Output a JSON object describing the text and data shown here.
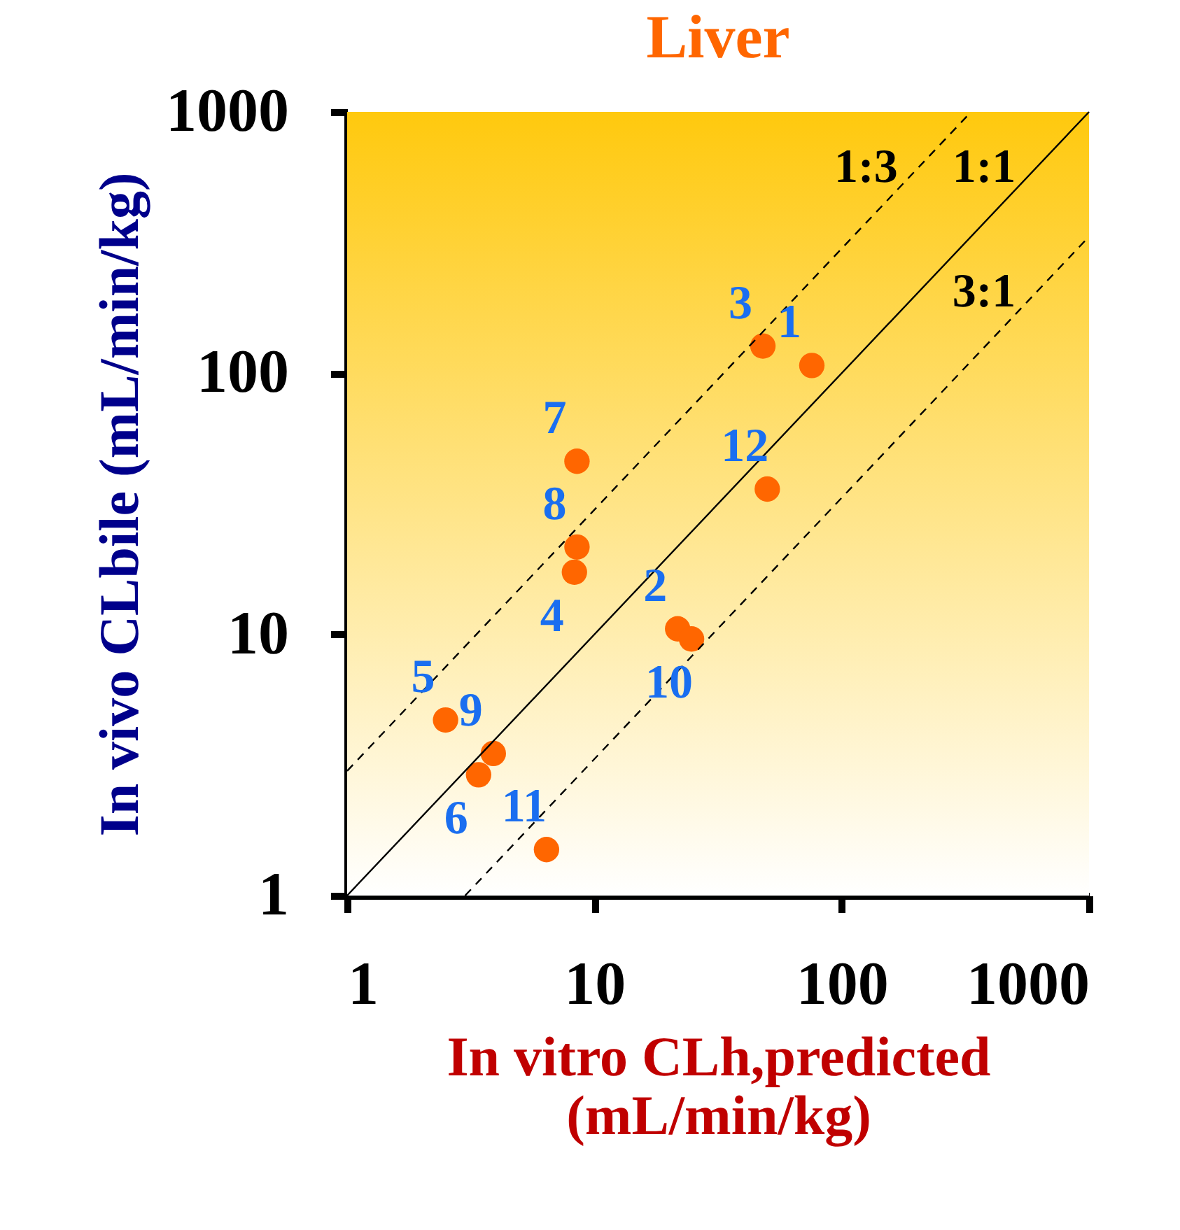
{
  "chart_data": {
    "type": "scatter",
    "title": "Liver",
    "xlabel": "In vitro CLh,predicted (mL/min/kg)",
    "ylabel": "In vivo CLbile (mL/min/kg)",
    "log": "xy",
    "xlim": [
      1,
      1000
    ],
    "ylim": [
      1,
      1000
    ],
    "xticks": [
      1,
      10,
      100,
      1000
    ],
    "yticks": [
      1,
      10,
      100,
      1000
    ],
    "grid": false,
    "series": [
      {
        "color": "#ff6600",
        "x": [
          75.7,
          21.7,
          48,
          8.3,
          2.5,
          3.4,
          8.5,
          8.5,
          3.9,
          24.7,
          6.4,
          50
        ],
        "values": [
          107,
          10.5,
          127,
          17.3,
          4.7,
          2.9,
          46,
          21.6,
          3.5,
          9.6,
          1.5,
          36
        ]
      },
      {
        "type": "line",
        "name": "1:3",
        "color": "#000000",
        "line_style": "dashed",
        "x": [
          1,
          333.3
        ],
        "values": [
          3,
          1000
        ]
      },
      {
        "type": "line",
        "name": "1:1",
        "color": "#000000",
        "line_style": "solid",
        "x": [
          1,
          1000
        ],
        "values": [
          1,
          1000
        ]
      },
      {
        "type": "line",
        "name": "3:1",
        "color": "#000000",
        "line_style": "dashed",
        "x": [
          3,
          1000
        ],
        "values": [
          1,
          333.3
        ]
      }
    ],
    "annotations": [
      {
        "text": "1",
        "x": 75.7,
        "y": 107
      },
      {
        "text": "2",
        "x": 21.7,
        "y": 10.5
      },
      {
        "text": "3",
        "x": 48,
        "y": 127
      },
      {
        "text": "4",
        "x": 8.3,
        "y": 17.3
      },
      {
        "text": "5",
        "x": 2.5,
        "y": 4.7
      },
      {
        "text": "6",
        "x": 3.4,
        "y": 2.9
      },
      {
        "text": "7",
        "x": 8.5,
        "y": 46
      },
      {
        "text": "8",
        "x": 8.5,
        "y": 21.6
      },
      {
        "text": "9",
        "x": 3.9,
        "y": 3.5
      },
      {
        "text": "10",
        "x": 24.7,
        "y": 9.6
      },
      {
        "text": "11",
        "x": 6.4,
        "y": 1.5
      },
      {
        "text": "12",
        "x": 50,
        "y": 36
      }
    ]
  }
}
